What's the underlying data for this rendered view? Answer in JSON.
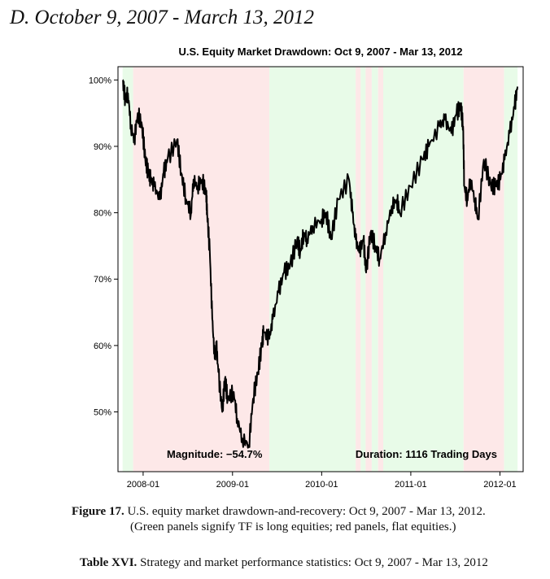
{
  "section_heading": "D. October 9, 2007 - March 13, 2012",
  "figure_caption": {
    "label": "Figure 17.",
    "text": "U.S. equity market drawdown-and-recovery: Oct 9, 2007 - Mar 13, 2012.",
    "line2": "(Green panels signify TF is long equities; red panels, flat equities.)"
  },
  "table_caption": {
    "label": "Table XVI.",
    "text": "Strategy and market performance statistics: Oct 9, 2007 - Mar 13, 2012"
  },
  "colors": {
    "long_panel": "#e8fbe8",
    "flat_panel": "#fde8e8",
    "line": "#000000"
  },
  "chart_data": {
    "type": "line",
    "title": "U.S. Equity Market Drawdown:  Oct 9, 2007 - Mar 13, 2012",
    "xlabel": "",
    "ylabel": "",
    "xlim": [
      "2007-09-20",
      "2012-04-05"
    ],
    "ylim": [
      41,
      102
    ],
    "x_ticks": [
      {
        "date": "2008-01-01",
        "label": "2008-01"
      },
      {
        "date": "2009-01-01",
        "label": "2009-01"
      },
      {
        "date": "2010-01-01",
        "label": "2010-01"
      },
      {
        "date": "2011-01-01",
        "label": "2011-01"
      },
      {
        "date": "2012-01-01",
        "label": "2012-01"
      }
    ],
    "y_ticks": [
      {
        "value": 50,
        "label": "50%"
      },
      {
        "value": 60,
        "label": "60%"
      },
      {
        "value": 70,
        "label": "70%"
      },
      {
        "value": 80,
        "label": "80%"
      },
      {
        "value": 90,
        "label": "90%"
      },
      {
        "value": 100,
        "label": "100%"
      }
    ],
    "panels": [
      {
        "start": "2007-10-09",
        "end": "2007-11-21",
        "state": "long"
      },
      {
        "start": "2007-11-21",
        "end": "2009-06-01",
        "state": "flat"
      },
      {
        "start": "2009-06-01",
        "end": "2010-05-20",
        "state": "long"
      },
      {
        "start": "2010-05-20",
        "end": "2010-06-10",
        "state": "flat"
      },
      {
        "start": "2010-06-10",
        "end": "2010-06-30",
        "state": "long"
      },
      {
        "start": "2010-06-30",
        "end": "2010-07-25",
        "state": "flat"
      },
      {
        "start": "2010-07-25",
        "end": "2010-08-20",
        "state": "long"
      },
      {
        "start": "2010-08-20",
        "end": "2010-09-10",
        "state": "flat"
      },
      {
        "start": "2010-09-10",
        "end": "2011-08-05",
        "state": "long"
      },
      {
        "start": "2011-08-05",
        "end": "2012-01-18",
        "state": "flat"
      },
      {
        "start": "2012-01-18",
        "end": "2012-03-13",
        "state": "long"
      }
    ],
    "series": [
      {
        "x": [
          "2007-10-09",
          "2007-10-20",
          "2007-10-31",
          "2007-11-12",
          "2007-11-26",
          "2007-12-10",
          "2007-12-28",
          "2008-01-10",
          "2008-01-22",
          "2008-02-01",
          "2008-02-15",
          "2008-03-10",
          "2008-03-25",
          "2008-04-10",
          "2008-05-19",
          "2008-06-05",
          "2008-06-25",
          "2008-07-15",
          "2008-07-25",
          "2008-08-11",
          "2008-08-29",
          "2008-09-15",
          "2008-09-19",
          "2008-09-30",
          "2008-10-10",
          "2008-10-20",
          "2008-10-27",
          "2008-11-04",
          "2008-11-20",
          "2008-12-01",
          "2008-12-12",
          "2009-01-06",
          "2009-01-20",
          "2009-02-10",
          "2009-03-09",
          "2009-03-26",
          "2009-04-15",
          "2009-05-01",
          "2009-05-08",
          "2009-06-01",
          "2009-06-15",
          "2009-07-08",
          "2009-07-31",
          "2009-08-25",
          "2009-09-23",
          "2009-10-05",
          "2009-10-20",
          "2009-11-02",
          "2009-11-25",
          "2009-12-31",
          "2010-01-19",
          "2010-02-08",
          "2010-03-10",
          "2010-04-23",
          "2010-05-07",
          "2010-05-20",
          "2010-06-04",
          "2010-06-21",
          "2010-07-02",
          "2010-07-20",
          "2010-08-09",
          "2010-08-26",
          "2010-09-20",
          "2010-10-15",
          "2010-11-05",
          "2010-11-16",
          "2010-12-31",
          "2011-02-18",
          "2011-03-16",
          "2011-04-29",
          "2011-05-20",
          "2011-06-16",
          "2011-07-07",
          "2011-07-25",
          "2011-08-03",
          "2011-08-08",
          "2011-08-20",
          "2011-09-02",
          "2011-09-20",
          "2011-10-03",
          "2011-10-27",
          "2011-11-25",
          "2011-12-15",
          "2012-01-03",
          "2012-01-20",
          "2012-02-10",
          "2012-03-01",
          "2012-03-13"
        ],
        "values": [
          100,
          97,
          98,
          93,
          91,
          95,
          93,
          88,
          86,
          85,
          84,
          82,
          86,
          88,
          91,
          86,
          82,
          80,
          85,
          84,
          85,
          83,
          80,
          74,
          64,
          58,
          60,
          56,
          50,
          55,
          52,
          53,
          49,
          46,
          45,
          52,
          56,
          60,
          62,
          61,
          64,
          68,
          71,
          72,
          76,
          74,
          77,
          76,
          78,
          79,
          80,
          76,
          82,
          85,
          80,
          76,
          74,
          76,
          71,
          77,
          75,
          73,
          77,
          81,
          82,
          80,
          84,
          88,
          90,
          93,
          94,
          92,
          95,
          96,
          93,
          84,
          82,
          85,
          82,
          79,
          88,
          84,
          84,
          85,
          88,
          92,
          96,
          99
        ]
      }
    ],
    "annotations": [
      {
        "text": "Magnitude: −54.7%",
        "position": "bottom-left"
      },
      {
        "text": "Duration: 1116 Trading Days",
        "position": "bottom-right"
      }
    ]
  }
}
